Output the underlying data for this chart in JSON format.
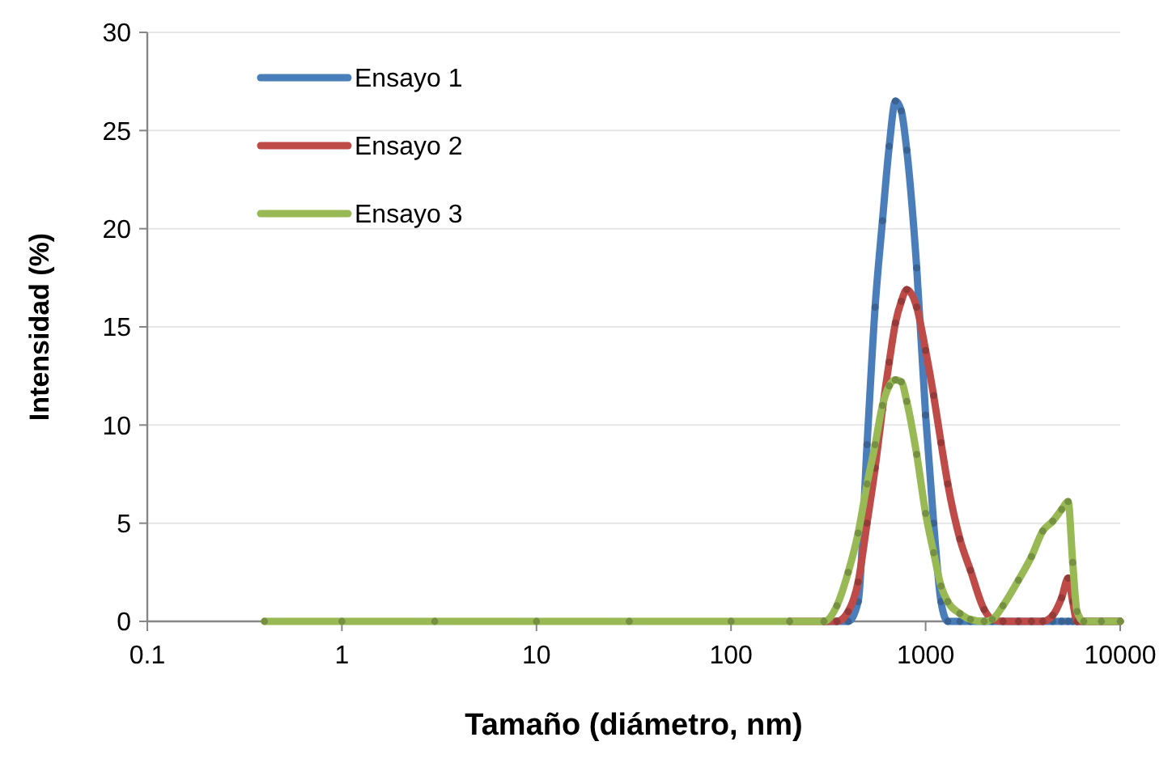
{
  "chart_data": {
    "type": "line",
    "xlabel": "Tamaño (diámetro, nm)",
    "ylabel": "Intensidad (%)",
    "log": "x",
    "x": [
      0.4,
      1,
      3,
      10,
      30,
      100,
      200,
      300,
      350,
      400,
      450,
      500,
      550,
      600,
      650,
      700,
      750,
      800,
      900,
      1000,
      1100,
      1200,
      1300,
      1500,
      1700,
      2000,
      2200,
      2500,
      3000,
      3500,
      4000,
      4500,
      5000,
      5400,
      5700,
      6000,
      6500,
      8000,
      10000
    ],
    "series": [
      {
        "name": "Ensayo 1",
        "color": "#4a7ebb",
        "values": [
          null,
          null,
          null,
          null,
          null,
          null,
          null,
          0,
          0,
          0,
          1,
          9,
          16,
          20.4,
          24.2,
          26.5,
          26,
          24,
          18,
          10.5,
          5,
          1,
          0,
          0,
          0,
          0,
          0,
          0,
          0,
          0,
          0,
          0,
          0,
          0,
          0,
          0,
          0,
          0,
          0
        ]
      },
      {
        "name": "Ensayo 2",
        "color": "#be4b48",
        "values": [
          null,
          null,
          null,
          null,
          null,
          null,
          0,
          0,
          0,
          0.5,
          2,
          5,
          7.8,
          10.8,
          13.2,
          15.2,
          16.3,
          16.9,
          16,
          13.8,
          11.5,
          9.1,
          7,
          4.2,
          2.6,
          0.6,
          0.1,
          0,
          0,
          0,
          0,
          0.3,
          1.2,
          2.2,
          1,
          0,
          0,
          0,
          0
        ]
      },
      {
        "name": "Ensayo 3",
        "color": "#98b954",
        "values": [
          0,
          0,
          0,
          0,
          0,
          0,
          0,
          0,
          0.8,
          2.5,
          4.5,
          7,
          9,
          11,
          12,
          12.3,
          12.2,
          11.2,
          8.5,
          5.5,
          3.5,
          1.8,
          1,
          0.4,
          0.1,
          0,
          0.1,
          0.8,
          2.1,
          3.3,
          4.6,
          5.1,
          5.7,
          6.1,
          3,
          0.5,
          0,
          0,
          0
        ]
      }
    ],
    "xlim": [
      0.1,
      10000
    ],
    "xticks": [
      0.1,
      1,
      10,
      100,
      1000,
      10000
    ],
    "ylim": [
      0,
      30
    ],
    "yticks": [
      0,
      5,
      10,
      15,
      20,
      25,
      30
    ],
    "grid": "y",
    "legend": "top left",
    "marker": "circle",
    "line_style": "solid"
  }
}
